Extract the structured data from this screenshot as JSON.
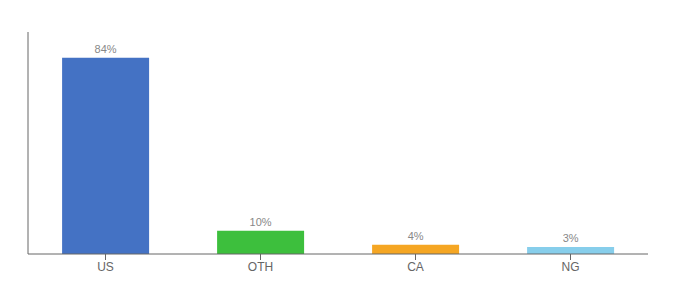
{
  "chart_data": {
    "type": "bar",
    "categories": [
      "US",
      "OTH",
      "CA",
      "NG"
    ],
    "values": [
      84,
      10,
      4,
      3
    ],
    "value_labels": [
      "84%",
      "10%",
      "4%",
      "3%"
    ],
    "colors": [
      "#4472c4",
      "#3dbf3d",
      "#f5a623",
      "#87ceeb"
    ],
    "ylim": [
      0,
      95
    ],
    "data_labels": true,
    "tick_labels": "x",
    "grid": false
  }
}
